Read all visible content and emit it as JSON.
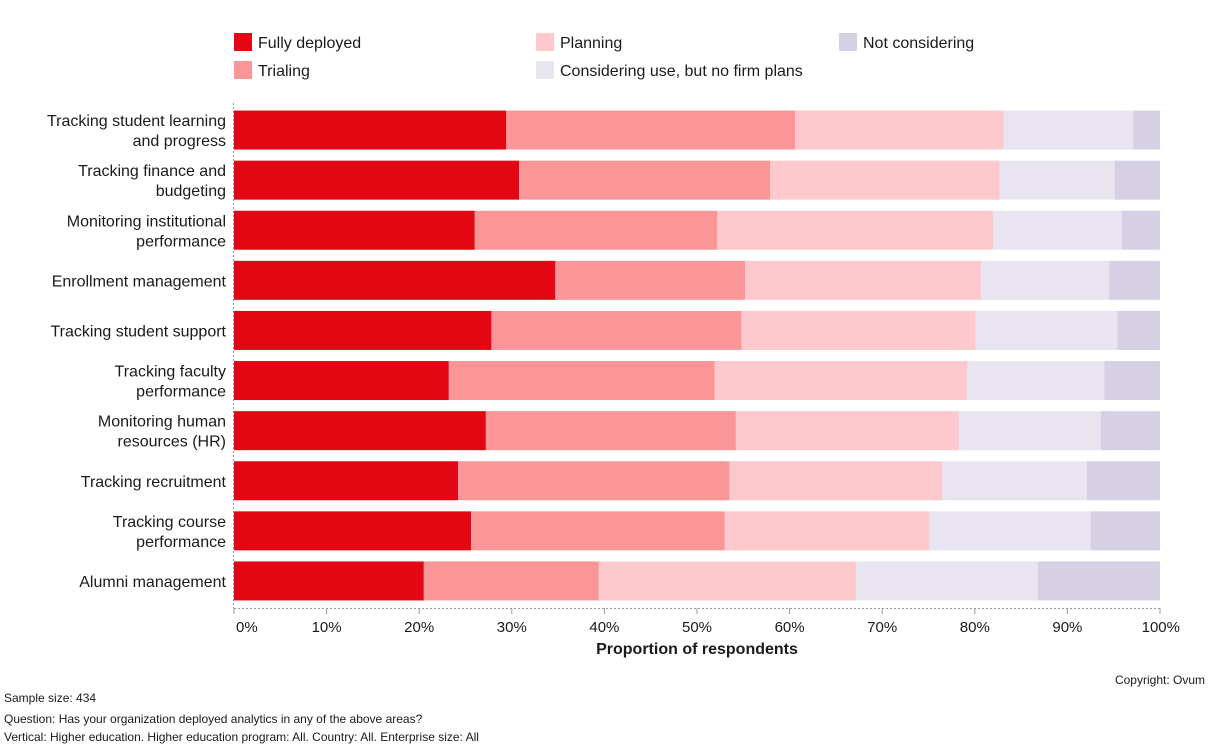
{
  "chart_data": {
    "type": "bar",
    "orientation": "horizontal",
    "stacked": true,
    "categories": [
      [
        "Tracking student learning",
        "and progress"
      ],
      [
        "Tracking finance and",
        "budgeting"
      ],
      [
        "Monitoring institutional",
        "performance"
      ],
      [
        "Enrollment management"
      ],
      [
        "Tracking student support"
      ],
      [
        "Tracking faculty",
        "performance"
      ],
      [
        "Monitoring human",
        "resources (HR)"
      ],
      [
        "Tracking recruitment"
      ],
      [
        "Tracking course",
        "performance"
      ],
      [
        "Alumni management"
      ]
    ],
    "series": [
      {
        "name": "Fully deployed",
        "color": "#e30613",
        "values": [
          29.4,
          30.8,
          26.0,
          34.7,
          27.8,
          23.2,
          27.2,
          24.2,
          25.6,
          20.5
        ]
      },
      {
        "name": "Trialing",
        "color": "#fa9598",
        "values": [
          31.2,
          27.1,
          26.2,
          20.5,
          27.0,
          28.7,
          27.0,
          29.3,
          27.4,
          18.9
        ]
      },
      {
        "name": "Planning",
        "color": "#fdc9cc",
        "values": [
          22.5,
          24.8,
          29.8,
          25.5,
          25.3,
          27.3,
          24.1,
          23.0,
          22.1,
          27.8
        ]
      },
      {
        "name": "Considering use, but no firm plans",
        "color": "#e8e5f0",
        "values": [
          14.0,
          12.4,
          13.9,
          13.8,
          15.3,
          14.8,
          15.3,
          15.6,
          17.4,
          19.6
        ]
      },
      {
        "name": "Not considering",
        "color": "#d5d0e4",
        "values": [
          2.9,
          4.9,
          4.1,
          5.5,
          4.6,
          6.0,
          6.4,
          7.9,
          7.5,
          13.2
        ]
      }
    ],
    "xlabel": "Proportion of respondents",
    "ylabel": "",
    "xlim": [
      0,
      100
    ],
    "xticks": [
      "0%",
      "10%",
      "20%",
      "30%",
      "40%",
      "50%",
      "60%",
      "70%",
      "80%",
      "90%",
      "100%"
    ],
    "grid": false,
    "legend": "top"
  },
  "footer": {
    "copyright": "Copyright: Ovum",
    "sample_size": "Sample size: 434",
    "question": "Question: Has your organization deployed analytics in any of the above areas?",
    "vertical": "Vertical: Higher education. Higher education program: All. Country: All. Enterprise size: All"
  }
}
